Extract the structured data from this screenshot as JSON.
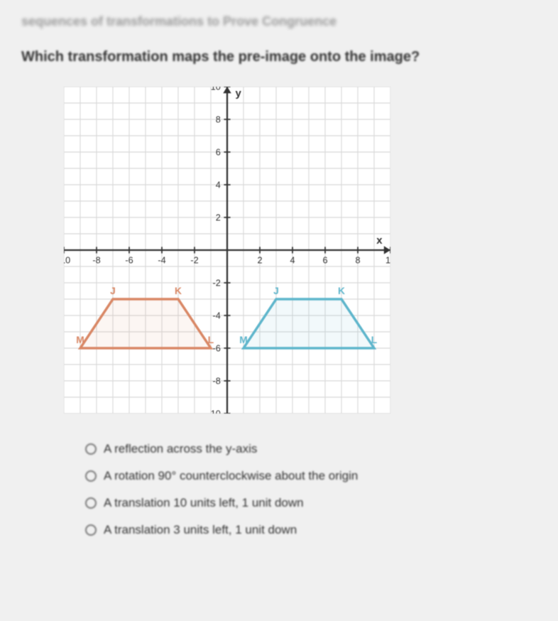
{
  "header_fragment": "sequences of transformations to Prove Congruence",
  "question": "Which transformation maps the pre-image onto the image?",
  "graph": {
    "xlim": [
      -10,
      10
    ],
    "ylim": [
      -10,
      10
    ],
    "tick_step": 2,
    "grid_color": "#d9d9d9",
    "axis_color": "#333333",
    "background": "#ffffff",
    "y_axis_label": "y",
    "x_axis_label": "x",
    "preimage": {
      "color": "#d98866",
      "fill": "rgba(217,136,102,0.08)",
      "points": [
        [
          -9,
          -6
        ],
        [
          -1,
          -6
        ],
        [
          -3,
          -3
        ],
        [
          -7,
          -3
        ]
      ],
      "labels": {
        "M": [
          -9,
          -6
        ],
        "L": [
          -1,
          -6
        ],
        "K": [
          -3,
          -3
        ],
        "J": [
          -7,
          -3
        ]
      }
    },
    "image": {
      "color": "#5fb6cc",
      "fill": "rgba(95,182,204,0.08)",
      "points": [
        [
          1,
          -6
        ],
        [
          9,
          -6
        ],
        [
          7,
          -3
        ],
        [
          3,
          -3
        ]
      ],
      "labels": {
        "M": [
          1,
          -6
        ],
        "L": [
          9,
          -6
        ],
        "K": [
          7,
          -3
        ],
        "J": [
          3,
          -3
        ]
      }
    }
  },
  "options": [
    {
      "label": "A reflection across the y-axis"
    },
    {
      "label": "A rotation 90° counterclockwise about the origin"
    },
    {
      "label": "A translation 10 units left, 1 unit down"
    },
    {
      "label": "A translation 3 units left, 1 unit down"
    }
  ]
}
